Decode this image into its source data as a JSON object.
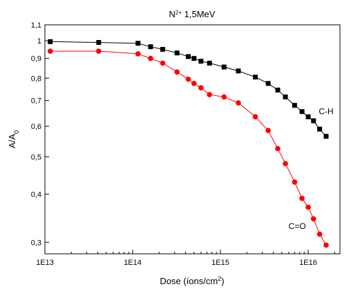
{
  "chart_data": {
    "type": "scatter",
    "title_main": "N",
    "title_sup": "2+",
    "title_rest": " 1,5MeV",
    "ylabel_main": "A/A",
    "ylabel_sub": "0",
    "xlabel_main": "Dose (íons/cm",
    "xlabel_sup": "2",
    "xlabel_end": ")",
    "x_scale": "log",
    "y_scale": "log",
    "xlim": [
      10000000000000.0,
      2.3e+16
    ],
    "ylim": [
      0.28,
      1.1
    ],
    "x_ticks": [
      {
        "value": 10000000000000.0,
        "label": "1E13"
      },
      {
        "value": 100000000000000.0,
        "label": "1E14"
      },
      {
        "value": 1000000000000000.0,
        "label": "1E15"
      },
      {
        "value": 1e+16,
        "label": "1E16"
      }
    ],
    "y_ticks": [
      {
        "value": 1.1,
        "label": "1,1"
      },
      {
        "value": 1.0,
        "label": "1"
      },
      {
        "value": 0.9,
        "label": "0,9"
      },
      {
        "value": 0.8,
        "label": "0,8"
      },
      {
        "value": 0.7,
        "label": "0,7"
      },
      {
        "value": 0.6,
        "label": "0,6"
      },
      {
        "value": 0.5,
        "label": "0,5"
      },
      {
        "value": 0.4,
        "label": "0,4"
      },
      {
        "value": 0.3,
        "label": "0,3"
      }
    ],
    "series": [
      {
        "name": "C-H",
        "color": "#000000",
        "marker": "square",
        "label_at": [
          1.6e+16,
          0.645
        ],
        "x": [
          11500000000000.0,
          41000000000000.0,
          115000000000000.0,
          160000000000000.0,
          220000000000000.0,
          320000000000000.0,
          430000000000000.0,
          500000000000000.0,
          600000000000000.0,
          750000000000000.0,
          1100000000000000.0,
          1600000000000000.0,
          2500000000000000.0,
          3500000000000000.0,
          4500000000000000.0,
          5500000000000000.0,
          7000000000000000.0,
          8500000000000000.0,
          1e+16,
          1.15e+16,
          1.35e+16,
          1.6e+16
        ],
        "y": [
          0.995,
          0.99,
          0.985,
          0.965,
          0.95,
          0.93,
          0.91,
          0.9,
          0.885,
          0.875,
          0.855,
          0.835,
          0.805,
          0.775,
          0.745,
          0.715,
          0.68,
          0.655,
          0.635,
          0.62,
          0.59,
          0.565
        ]
      },
      {
        "name": "C=O",
        "color": "#ff0000",
        "marker": "circle",
        "label_at": [
          7500000000000000.0,
          0.325
        ],
        "x": [
          11500000000000.0,
          41000000000000.0,
          115000000000000.0,
          160000000000000.0,
          220000000000000.0,
          320000000000000.0,
          430000000000000.0,
          500000000000000.0,
          600000000000000.0,
          750000000000000.0,
          1100000000000000.0,
          1600000000000000.0,
          2500000000000000.0,
          3500000000000000.0,
          4500000000000000.0,
          5500000000000000.0,
          7000000000000000.0,
          8500000000000000.0,
          1e+16,
          1.15e+16,
          1.35e+16,
          1.6e+16
        ],
        "y": [
          0.94,
          0.94,
          0.925,
          0.9,
          0.875,
          0.83,
          0.795,
          0.775,
          0.755,
          0.725,
          0.715,
          0.69,
          0.635,
          0.585,
          0.525,
          0.48,
          0.43,
          0.39,
          0.37,
          0.345,
          0.315,
          0.295
        ]
      }
    ]
  }
}
